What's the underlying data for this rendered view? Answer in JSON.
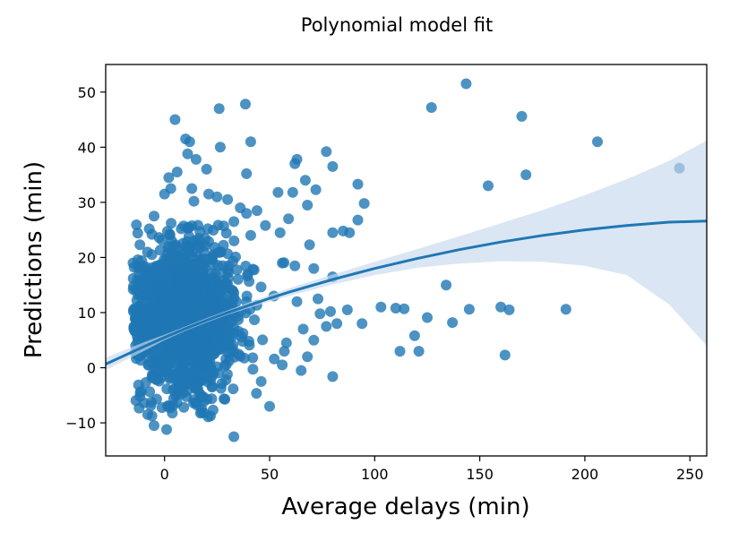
{
  "chart_data": {
    "type": "scatter",
    "title": "Polynomial model fit",
    "xlabel": "Average delays (min)",
    "ylabel": "Predictions (min)",
    "xlim": [
      -28,
      258
    ],
    "ylim": [
      -16,
      55
    ],
    "xticks": [
      0,
      50,
      100,
      150,
      200,
      250
    ],
    "yticks": [
      -10,
      0,
      10,
      20,
      30,
      40,
      50
    ],
    "grid": false,
    "legend": "none",
    "colors": {
      "points": "#1f77b4",
      "band": "#c6d9ec",
      "line": "#1f77b4"
    },
    "points": [
      [
        143.5,
        51.5
      ],
      [
        38.5,
        47.8
      ],
      [
        26,
        47
      ],
      [
        127,
        47.2
      ],
      [
        170,
        45.6
      ],
      [
        5,
        45
      ],
      [
        10,
        41.5
      ],
      [
        12,
        41
      ],
      [
        41,
        41
      ],
      [
        206,
        41
      ],
      [
        26.5,
        40
      ],
      [
        77,
        39.2
      ],
      [
        11,
        38.8
      ],
      [
        15,
        37.8
      ],
      [
        63,
        37.8
      ],
      [
        62,
        37
      ],
      [
        80,
        36.5
      ],
      [
        245,
        36.2
      ],
      [
        20,
        36
      ],
      [
        6,
        35.5
      ],
      [
        39,
        35.2
      ],
      [
        172,
        35
      ],
      [
        2,
        34.5
      ],
      [
        67,
        34
      ],
      [
        92,
        33.3
      ],
      [
        154,
        33
      ],
      [
        3,
        32.5
      ],
      [
        13,
        32.5
      ],
      [
        72,
        32.3
      ],
      [
        54,
        31.8
      ],
      [
        61,
        31.8
      ],
      [
        0,
        31.5
      ],
      [
        21,
        31.5
      ],
      [
        25,
        31
      ],
      [
        30,
        30.5
      ],
      [
        14,
        30.2
      ],
      [
        95,
        29.8
      ],
      [
        68,
        29.5
      ],
      [
        36,
        29
      ],
      [
        44,
        28.5
      ],
      [
        39,
        28
      ],
      [
        -5,
        27.5
      ],
      [
        59,
        27
      ],
      [
        92,
        26.8
      ],
      [
        33,
        26.5
      ],
      [
        48,
        25.8
      ],
      [
        85,
        24.8
      ],
      [
        88,
        24.5
      ],
      [
        80,
        24.5
      ],
      [
        55,
        24.5
      ],
      [
        -6,
        24.2
      ],
      [
        41,
        24
      ],
      [
        69,
        22.3
      ],
      [
        -15,
        19
      ],
      [
        56,
        19
      ],
      [
        62,
        18.5
      ],
      [
        71,
        18
      ],
      [
        80,
        16.5
      ],
      [
        134,
        15
      ],
      [
        52,
        13
      ],
      [
        73,
        12.5
      ],
      [
        63,
        12
      ],
      [
        103,
        11
      ],
      [
        110,
        10.8
      ],
      [
        114,
        10.7
      ],
      [
        145,
        10.6
      ],
      [
        160,
        11
      ],
      [
        164,
        10.5
      ],
      [
        191,
        10.6
      ],
      [
        87,
        10.5
      ],
      [
        79,
        10.2
      ],
      [
        74,
        9.8
      ],
      [
        125,
        9.1
      ],
      [
        137,
        8.2
      ],
      [
        82,
        8
      ],
      [
        94,
        8
      ],
      [
        77,
        7.5
      ],
      [
        66,
        7
      ],
      [
        119,
        5.8
      ],
      [
        71,
        5
      ],
      [
        58,
        4.5
      ],
      [
        112,
        3
      ],
      [
        121,
        3
      ],
      [
        162,
        2.3
      ],
      [
        57,
        3
      ],
      [
        68,
        2
      ],
      [
        42,
        1.8
      ],
      [
        56,
        0.5
      ],
      [
        65,
        -0.5
      ],
      [
        80,
        -1.6
      ],
      [
        46,
        -2.5
      ],
      [
        50,
        -7
      ],
      [
        33,
        -12.5
      ],
      [
        -5,
        -10.5
      ],
      [
        1,
        -11.2
      ],
      [
        -8,
        -8.5
      ]
    ],
    "fit_line": {
      "x": [
        -30,
        -10,
        0,
        10,
        20,
        30,
        40,
        50,
        60,
        70,
        80,
        100,
        120,
        140,
        160,
        180,
        200,
        220,
        240,
        258
      ],
      "y": [
        0.3,
        3.8,
        5.5,
        7.1,
        8.6,
        10.0,
        11.3,
        12.6,
        13.8,
        14.9,
        16.0,
        18.0,
        19.8,
        21.4,
        22.8,
        24.0,
        25.0,
        25.8,
        26.4,
        26.6
      ]
    },
    "ci_band": {
      "x": [
        -30,
        -10,
        0,
        10,
        20,
        30,
        40,
        50,
        60,
        70,
        80,
        100,
        120,
        140,
        160,
        180,
        200,
        220,
        240,
        258
      ],
      "upper": [
        1.5,
        4.6,
        6.0,
        7.5,
        9.0,
        10.4,
        11.8,
        13.2,
        14.5,
        15.7,
        16.9,
        19.2,
        21.5,
        23.8,
        26.2,
        28.6,
        31.3,
        34.2,
        37.5,
        41.2
      ],
      "lower": [
        -0.8,
        3.0,
        5.0,
        6.7,
        8.2,
        9.6,
        10.8,
        12.0,
        13.1,
        14.1,
        15.1,
        16.8,
        18.1,
        18.9,
        19.3,
        19.2,
        18.5,
        16.8,
        11.5,
        4.0
      ]
    },
    "cluster": {
      "center_x": 10,
      "center_y": 9,
      "spread_x": 14,
      "spread_y": 7,
      "count": 1400
    }
  }
}
